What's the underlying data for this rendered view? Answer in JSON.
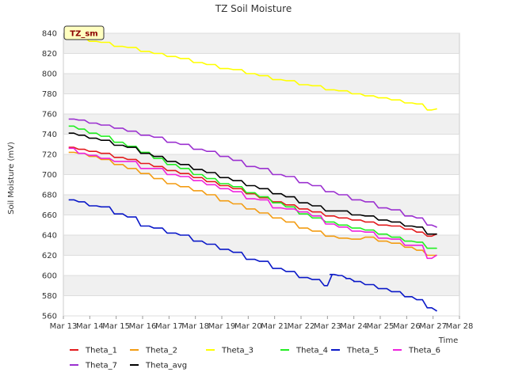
{
  "chart_data": {
    "type": "line",
    "title": "TZ Soil Moisture",
    "xlabel": "Time",
    "ylabel": "Soil Moisture (mV)",
    "badge": "TZ_sm",
    "ylim": [
      560,
      840
    ],
    "yticks": [
      560,
      580,
      600,
      620,
      640,
      660,
      680,
      700,
      720,
      740,
      760,
      780,
      800,
      820,
      840
    ],
    "xlim": [
      13,
      28
    ],
    "xticks": [
      13,
      14,
      15,
      16,
      17,
      18,
      19,
      20,
      21,
      22,
      23,
      24,
      25,
      26,
      27,
      28
    ],
    "xtick_labels": [
      "Mar 13",
      "Mar 14",
      "Mar 15",
      "Mar 16",
      "Mar 17",
      "Mar 18",
      "Mar 19",
      "Mar 20",
      "Mar 21",
      "Mar 22",
      "Mar 23",
      "Mar 24",
      "Mar 25",
      "Mar 26",
      "Mar 27",
      "Mar 28"
    ],
    "grid": "horizontal bands",
    "series": [
      {
        "name": "Theta_1",
        "color": "#e31a1c",
        "x": [
          13.2,
          13.6,
          14.0,
          14.5,
          15.0,
          15.5,
          16.0,
          16.5,
          17.0,
          17.5,
          18.0,
          18.5,
          19.0,
          19.5,
          20.0,
          20.5,
          21.0,
          21.5,
          22.0,
          22.5,
          23.0,
          23.5,
          24.0,
          24.5,
          25.0,
          25.5,
          26.0,
          26.4,
          26.8,
          27.1
        ],
        "y": [
          727,
          725,
          723,
          721,
          717,
          715,
          711,
          708,
          704,
          701,
          697,
          693,
          689,
          686,
          681,
          677,
          673,
          670,
          666,
          663,
          659,
          657,
          655,
          653,
          650,
          649,
          646,
          643,
          639,
          641
        ]
      },
      {
        "name": "Theta_2",
        "color": "#f39c12",
        "x": [
          13.2,
          13.6,
          14.0,
          14.5,
          15.0,
          15.5,
          16.0,
          16.5,
          17.0,
          17.5,
          18.0,
          18.5,
          19.0,
          19.5,
          20.0,
          20.5,
          21.0,
          21.5,
          22.0,
          22.5,
          23.0,
          23.5,
          24.0,
          24.5,
          25.0,
          25.5,
          26.0,
          26.4,
          26.8,
          27.1
        ],
        "y": [
          722,
          721,
          718,
          715,
          710,
          706,
          701,
          696,
          691,
          688,
          684,
          680,
          674,
          671,
          666,
          662,
          657,
          653,
          647,
          644,
          639,
          637,
          636,
          638,
          634,
          632,
          628,
          625,
          620,
          620
        ]
      },
      {
        "name": "Theta_3",
        "color": "#ffff00",
        "x": [
          13.2,
          13.6,
          14.0,
          14.5,
          15.0,
          15.5,
          16.0,
          16.5,
          17.0,
          17.5,
          18.0,
          18.5,
          19.0,
          19.5,
          20.0,
          20.5,
          21.0,
          21.5,
          22.0,
          22.5,
          23.0,
          23.5,
          24.0,
          24.5,
          25.0,
          25.5,
          26.0,
          26.4,
          26.8,
          27.1
        ],
        "y": [
          838,
          836,
          832,
          831,
          827,
          826,
          822,
          820,
          817,
          815,
          811,
          809,
          805,
          804,
          800,
          798,
          794,
          793,
          789,
          788,
          784,
          783,
          780,
          778,
          776,
          774,
          771,
          770,
          764,
          765
        ]
      },
      {
        "name": "Theta_4",
        "color": "#22ee22",
        "x": [
          13.2,
          13.6,
          14.0,
          14.5,
          15.0,
          15.5,
          16.0,
          16.5,
          17.0,
          17.5,
          18.0,
          18.5,
          19.0,
          19.5,
          20.0,
          20.5,
          21.0,
          21.5,
          22.0,
          22.5,
          23.0,
          23.5,
          24.0,
          24.5,
          25.0,
          25.5,
          26.0,
          26.4,
          26.8,
          27.1
        ],
        "y": [
          748,
          745,
          741,
          738,
          732,
          728,
          722,
          716,
          710,
          706,
          700,
          696,
          691,
          688,
          682,
          678,
          672,
          668,
          661,
          657,
          653,
          650,
          647,
          645,
          641,
          638,
          634,
          633,
          627,
          627
        ]
      },
      {
        "name": "Theta_5",
        "color": "#0a18c8",
        "x": [
          13.2,
          13.6,
          14.0,
          14.5,
          15.0,
          15.5,
          16.0,
          16.5,
          17.0,
          17.5,
          18.0,
          18.5,
          19.0,
          19.5,
          20.0,
          20.5,
          21.0,
          21.5,
          22.0,
          22.5,
          22.9,
          23.1,
          23.4,
          23.7,
          24.0,
          24.5,
          25.0,
          25.5,
          26.0,
          26.4,
          26.8,
          27.1
        ],
        "y": [
          675,
          673,
          669,
          668,
          661,
          658,
          649,
          647,
          642,
          640,
          634,
          631,
          626,
          623,
          616,
          614,
          607,
          604,
          598,
          596,
          590,
          601,
          600,
          597,
          594,
          591,
          587,
          584,
          579,
          576,
          568,
          565
        ]
      },
      {
        "name": "Theta_6",
        "color": "#ee22dd",
        "x": [
          13.2,
          13.6,
          14.0,
          14.5,
          15.0,
          15.5,
          16.0,
          16.5,
          17.0,
          17.5,
          18.0,
          18.5,
          19.0,
          19.5,
          20.0,
          20.5,
          21.0,
          21.5,
          22.0,
          22.5,
          23.0,
          23.5,
          24.0,
          24.5,
          25.0,
          25.5,
          26.0,
          26.4,
          26.8,
          27.1
        ],
        "y": [
          726,
          721,
          719,
          716,
          713,
          713,
          706,
          706,
          700,
          698,
          694,
          690,
          686,
          683,
          676,
          675,
          667,
          666,
          663,
          659,
          651,
          648,
          644,
          643,
          637,
          636,
          630,
          630,
          617,
          620
        ]
      },
      {
        "name": "Theta_7",
        "color": "#9b30d0",
        "x": [
          13.2,
          13.6,
          14.0,
          14.5,
          15.0,
          15.5,
          16.0,
          16.5,
          17.0,
          17.5,
          18.0,
          18.5,
          19.0,
          19.5,
          20.0,
          20.5,
          21.0,
          21.5,
          22.0,
          22.5,
          23.0,
          23.5,
          24.0,
          24.5,
          25.0,
          25.5,
          26.0,
          26.4,
          26.8,
          27.1
        ],
        "y": [
          755,
          754,
          751,
          749,
          746,
          743,
          739,
          737,
          732,
          730,
          725,
          723,
          718,
          714,
          708,
          706,
          700,
          698,
          692,
          689,
          683,
          680,
          675,
          673,
          667,
          665,
          659,
          657,
          650,
          648
        ]
      },
      {
        "name": "Theta_avg",
        "color": "#000000",
        "x": [
          13.2,
          13.6,
          14.0,
          14.5,
          15.0,
          15.5,
          16.0,
          16.5,
          17.0,
          17.5,
          18.0,
          18.5,
          19.0,
          19.5,
          20.0,
          20.5,
          21.0,
          21.5,
          22.0,
          22.5,
          23.0,
          23.5,
          24.0,
          24.5,
          25.0,
          25.5,
          26.0,
          26.4,
          26.8,
          27.1
        ],
        "y": [
          741,
          739,
          736,
          734,
          729,
          727,
          721,
          718,
          713,
          710,
          705,
          702,
          697,
          694,
          689,
          686,
          681,
          678,
          672,
          669,
          664,
          664,
          660,
          659,
          655,
          653,
          649,
          648,
          641,
          641
        ]
      }
    ],
    "legend": {
      "placement": "bottom",
      "rows": [
        [
          "Theta_1",
          "Theta_2",
          "Theta_3",
          "Theta_4",
          "Theta_5",
          "Theta_6"
        ],
        [
          "Theta_7",
          "Theta_avg"
        ]
      ]
    }
  }
}
